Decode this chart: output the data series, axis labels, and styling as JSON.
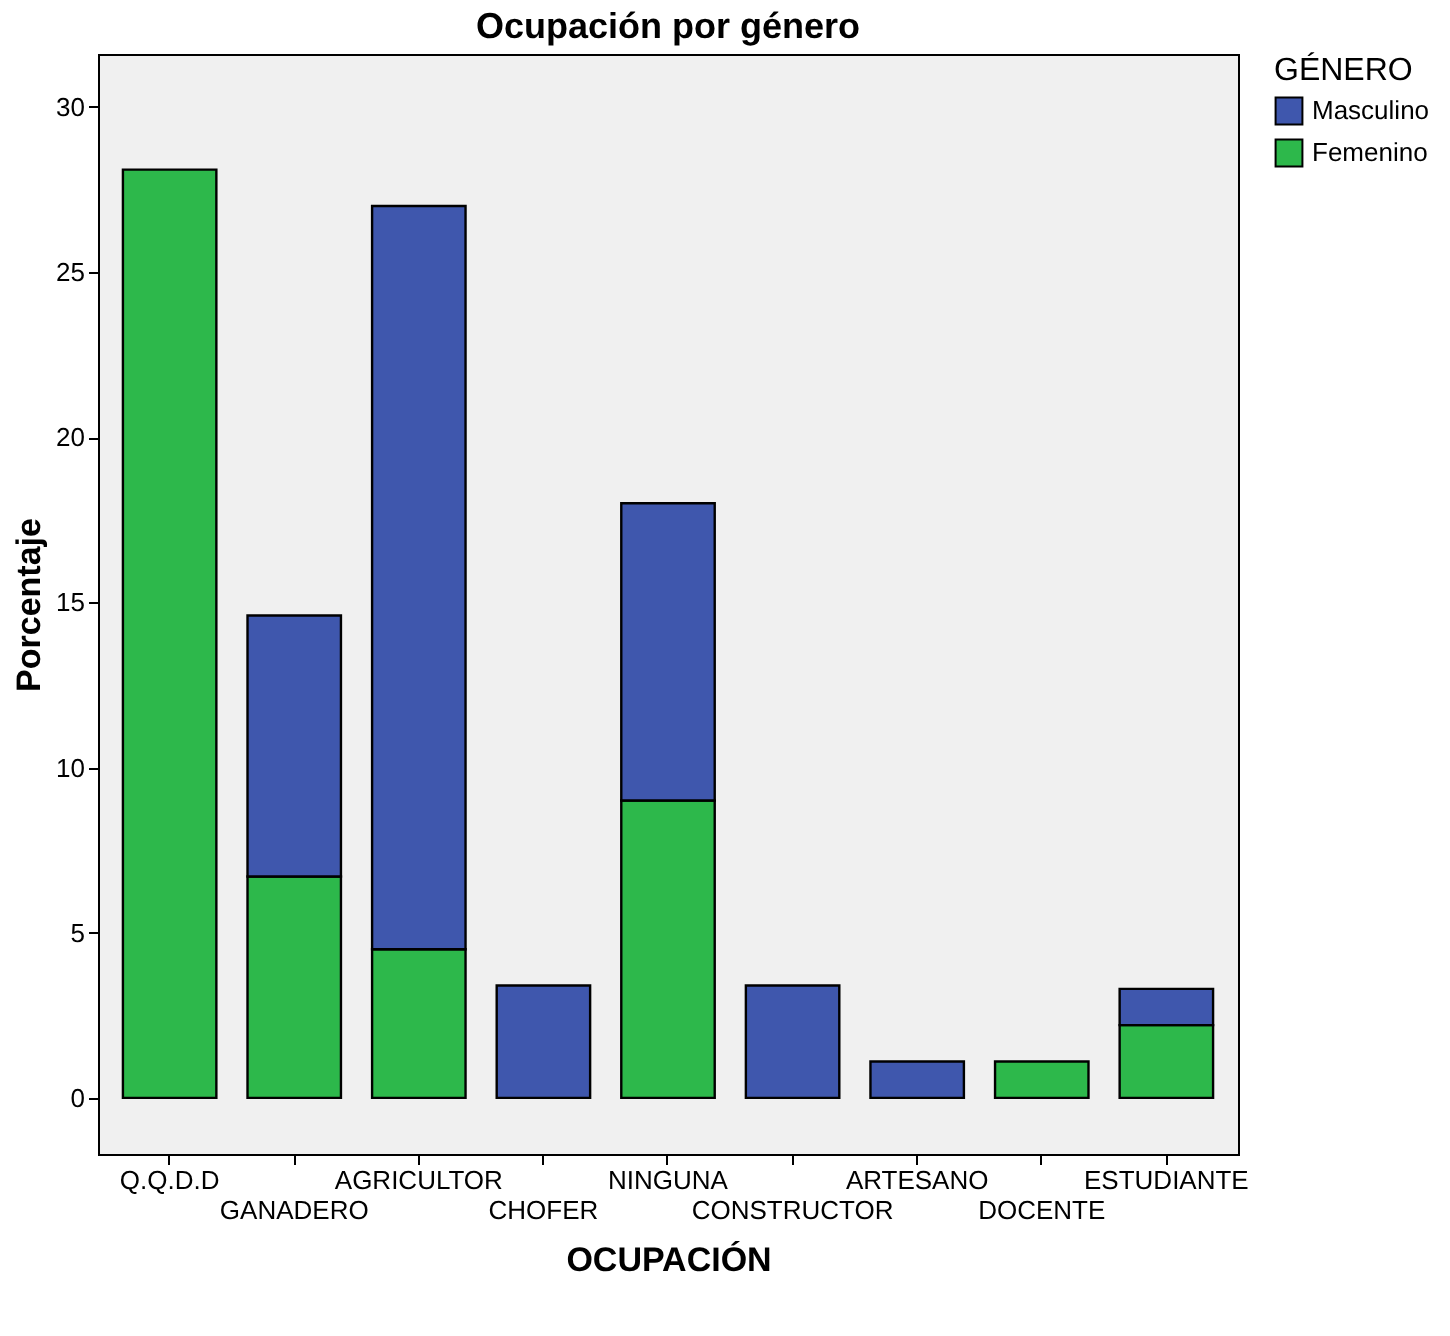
{
  "chart_data": {
    "type": "bar",
    "title": "Ocupación por género",
    "xlabel": "OCUPACIÓN",
    "ylabel": "Porcentaje",
    "legend_title": "GÉNERO",
    "categories": [
      "Q.Q.D.D",
      "GANADERO",
      "AGRICULTOR",
      "CHOFER",
      "NINGUNA",
      "CONSTRUCTOR",
      "ARTESANO",
      "DOCENTE",
      "ESTUDIANTE"
    ],
    "stacked": true,
    "series": [
      {
        "name": "Femenino",
        "color": "#2db84b",
        "values": [
          28.1,
          6.7,
          4.5,
          0,
          9.0,
          0,
          0,
          1.1,
          2.2
        ]
      },
      {
        "name": "Masculino",
        "color": "#3f57ad",
        "values": [
          0,
          7.9,
          22.5,
          3.4,
          9.0,
          3.4,
          1.1,
          0,
          1.1
        ]
      }
    ],
    "ylim": [
      -1.7,
      31.6
    ],
    "yticks": [
      0,
      5,
      10,
      15,
      20,
      25,
      30
    ],
    "grid": false,
    "legend": "top right"
  }
}
